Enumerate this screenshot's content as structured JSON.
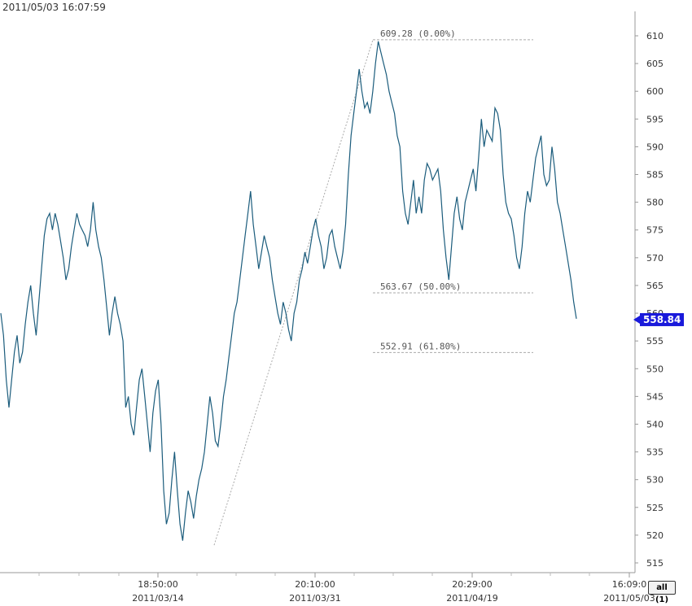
{
  "header": {
    "timestamp": "2011/05/03 16:07:59"
  },
  "controls": {
    "zoom_label": "all (1)"
  },
  "chart_data": {
    "type": "line",
    "title": "",
    "ylim": [
      513,
      614
    ],
    "y_ticks": [
      515,
      520,
      525,
      530,
      535,
      540,
      545,
      550,
      555,
      560,
      565,
      570,
      575,
      580,
      585,
      590,
      595,
      600,
      605,
      610
    ],
    "x_ticks": [
      {
        "time": "18:50:00",
        "date": "2011/03/14"
      },
      {
        "time": "20:10:00",
        "date": "2011/03/31"
      },
      {
        "time": "20:29:00",
        "date": "2011/04/19"
      },
      {
        "time": "16:09:0",
        "date": "2011/05/03"
      }
    ],
    "last_price": {
      "value": 558.84,
      "label": "558.84"
    },
    "fibonacci": [
      {
        "price": 609.28,
        "label": "609.28 (0.00%)"
      },
      {
        "price": 563.67,
        "label": "563.67 (50.00%)"
      },
      {
        "price": 552.91,
        "label": "552.91 (61.80%)"
      }
    ],
    "series_color": "#1b5c7c",
    "colors": {
      "last_price_badge": "#1a1adb",
      "grid_line": "#c8c8c8"
    },
    "series": [
      {
        "values": [
          560,
          556,
          548,
          543,
          548,
          553,
          556,
          551,
          553,
          558,
          562,
          565,
          560,
          556,
          562,
          568,
          574,
          577,
          578,
          575,
          578,
          576,
          573,
          570,
          566,
          568,
          572,
          575,
          578,
          576,
          575,
          574,
          572,
          575,
          580,
          575,
          572,
          570,
          566,
          561,
          556,
          560,
          563,
          560,
          558,
          555,
          543,
          545,
          540,
          538,
          543,
          548,
          550,
          545,
          540,
          535,
          542,
          546,
          548,
          540,
          528,
          522,
          524,
          530,
          535,
          528,
          522,
          519,
          524,
          528,
          526,
          523,
          527,
          530,
          532,
          535,
          540,
          545,
          542,
          537,
          536,
          540,
          545,
          548,
          552,
          556,
          560,
          562,
          566,
          570,
          574,
          578,
          582,
          576,
          572,
          568,
          571,
          574,
          572,
          570,
          566,
          563,
          560,
          558,
          562,
          560,
          557,
          555,
          560,
          562,
          566,
          568,
          571,
          569,
          572,
          575,
          577,
          574,
          572,
          568,
          570,
          574,
          575,
          572,
          570,
          568,
          571,
          576,
          585,
          592,
          596,
          600,
          604,
          600,
          597,
          598,
          596,
          600,
          605,
          609,
          607,
          605,
          603,
          600,
          598,
          596,
          592,
          590,
          582,
          578,
          576,
          580,
          584,
          578,
          581,
          578,
          584,
          587,
          586,
          584,
          585,
          586,
          582,
          575,
          570,
          566,
          572,
          578,
          581,
          577,
          575,
          580,
          582,
          584,
          586,
          582,
          588,
          595,
          590,
          593,
          592,
          591,
          597,
          596,
          593,
          585,
          580,
          578,
          577,
          574,
          570,
          568,
          572,
          578,
          582,
          580,
          584,
          588,
          590,
          592,
          585,
          583,
          584,
          590,
          586,
          580,
          578,
          575,
          572,
          569,
          566,
          562,
          559
        ]
      }
    ]
  }
}
